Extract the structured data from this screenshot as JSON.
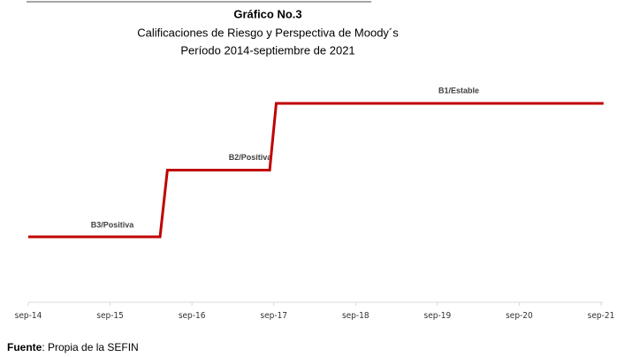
{
  "chart_data": {
    "type": "step-line",
    "title": "Gráfico No.3",
    "subtitle": [
      "Calificaciones de Riesgo y Perspectiva de Moody´s",
      "Período 2014-septiembre de 2021"
    ],
    "y_categories": [
      "B3/Positiva",
      "B2/Positiva",
      "B1/Estable"
    ],
    "xlim": [
      2014.67,
      2021.67
    ],
    "xticks": [
      {
        "value": 2014.67,
        "label": "sep-14"
      },
      {
        "value": 2015.67,
        "label": "sep-15"
      },
      {
        "value": 2016.67,
        "label": "sep-16"
      },
      {
        "value": 2017.67,
        "label": "sep-17"
      },
      {
        "value": 2018.67,
        "label": "sep-18"
      },
      {
        "value": 2019.67,
        "label": "sep-19"
      },
      {
        "value": 2020.67,
        "label": "sep-20"
      },
      {
        "value": 2021.67,
        "label": "sep-21"
      }
    ],
    "series": [
      {
        "color": "#c00000",
        "x": [
          2014.67,
          2016.28,
          2016.37,
          2017.62,
          2017.7,
          2021.7
        ],
        "values": [
          "B3/Positiva",
          "B3/Positiva",
          "B2/Positiva",
          "B2/Positiva",
          "B1/Estable",
          "B1/Estable"
        ]
      }
    ],
    "source": {
      "label": "Fuente",
      "text": ": Propia de la SEFIN"
    }
  }
}
